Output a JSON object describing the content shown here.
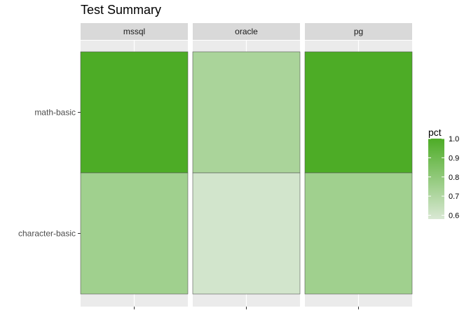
{
  "chart_data": {
    "type": "heatmap",
    "title": "Test Summary",
    "xlabel": "",
    "ylabel": "",
    "facets": [
      "mssql",
      "oracle",
      "pg"
    ],
    "rows": [
      "math-basic",
      "character-basic"
    ],
    "cells": [
      {
        "facet": "mssql",
        "row": "math-basic",
        "pct": 1.0
      },
      {
        "facet": "mssql",
        "row": "character-basic",
        "pct": 0.75
      },
      {
        "facet": "oracle",
        "row": "math-basic",
        "pct": 0.72
      },
      {
        "facet": "oracle",
        "row": "character-basic",
        "pct": 0.6
      },
      {
        "facet": "pg",
        "row": "math-basic",
        "pct": 1.0
      },
      {
        "facet": "pg",
        "row": "character-basic",
        "pct": 0.75
      }
    ],
    "legend": {
      "title": "pct",
      "placement": "right",
      "range": [
        0.58,
        1.0
      ],
      "breaks": [
        "0.6",
        "0.7",
        "0.8",
        "0.9",
        "1.0"
      ],
      "color_low": "#d9e8d4",
      "color_high": "#4dac26"
    },
    "grid": true,
    "panel_background": "#ebebeb",
    "strip_background": "#d9d9d9"
  }
}
